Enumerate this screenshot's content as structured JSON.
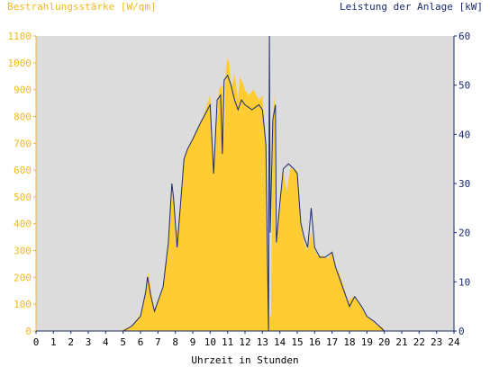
{
  "chart_data": {
    "type": "area",
    "left_axis_label": "Bestrahlungsstärke [W/qm]",
    "right_axis_label": "Leistung der Anlage [kW]",
    "xlabel": "Uhrzeit in Stunden",
    "xlim": [
      0,
      24
    ],
    "x_ticks": [
      0,
      1,
      2,
      3,
      4,
      5,
      6,
      7,
      8,
      9,
      10,
      11,
      12,
      13,
      14,
      15,
      16,
      17,
      18,
      19,
      20,
      21,
      22,
      23,
      24
    ],
    "ylim_left": [
      0,
      1100
    ],
    "y_ticks_left": [
      0,
      100,
      200,
      300,
      400,
      500,
      600,
      700,
      800,
      900,
      1000,
      1100
    ],
    "ylim_right": [
      0,
      60
    ],
    "y_ticks_right": [
      0,
      10,
      20,
      30,
      40,
      50,
      60
    ],
    "grid": false,
    "colors": {
      "irradiance_fill": "#ffcc33",
      "power_line": "#1a2a6c",
      "left_axis_text": "#f2b81c",
      "right_axis_text": "#1a2a6c",
      "plot_bg": "#dcdcdc"
    },
    "series": [
      {
        "axis": "left",
        "style": "filled-area",
        "points": [
          [
            0,
            0
          ],
          [
            4.8,
            0
          ],
          [
            5.0,
            5
          ],
          [
            5.5,
            20
          ],
          [
            6.0,
            60
          ],
          [
            6.3,
            150
          ],
          [
            6.45,
            220
          ],
          [
            6.6,
            150
          ],
          [
            6.8,
            80
          ],
          [
            7.0,
            110
          ],
          [
            7.3,
            160
          ],
          [
            7.6,
            330
          ],
          [
            7.8,
            520
          ],
          [
            7.95,
            480
          ],
          [
            8.0,
            320
          ],
          [
            8.3,
            480
          ],
          [
            8.5,
            640
          ],
          [
            8.7,
            680
          ],
          [
            9.0,
            720
          ],
          [
            9.3,
            760
          ],
          [
            9.6,
            800
          ],
          [
            9.8,
            840
          ],
          [
            10.0,
            880
          ],
          [
            10.2,
            600
          ],
          [
            10.5,
            900
          ],
          [
            10.7,
            920
          ],
          [
            10.8,
            700
          ],
          [
            10.9,
            980
          ],
          [
            11.0,
            1020
          ],
          [
            11.1,
            1000
          ],
          [
            11.2,
            900
          ],
          [
            11.4,
            960
          ],
          [
            11.6,
            860
          ],
          [
            11.7,
            950
          ],
          [
            11.9,
            920
          ],
          [
            12.0,
            900
          ],
          [
            12.2,
            880
          ],
          [
            12.5,
            900
          ],
          [
            12.8,
            860
          ],
          [
            13.0,
            880
          ],
          [
            13.2,
            700
          ],
          [
            13.3,
            200
          ],
          [
            13.4,
            50
          ],
          [
            13.5,
            60
          ],
          [
            13.6,
            800
          ],
          [
            13.7,
            880
          ],
          [
            13.75,
            300
          ],
          [
            13.8,
            350
          ],
          [
            14.0,
            450
          ],
          [
            14.2,
            600
          ],
          [
            14.4,
            520
          ],
          [
            14.6,
            610
          ],
          [
            14.8,
            600
          ],
          [
            15.0,
            600
          ],
          [
            15.2,
            400
          ],
          [
            15.4,
            330
          ],
          [
            15.6,
            300
          ],
          [
            15.8,
            370
          ],
          [
            16.0,
            300
          ],
          [
            16.2,
            280
          ],
          [
            16.5,
            280
          ],
          [
            16.8,
            270
          ],
          [
            17.0,
            300
          ],
          [
            17.2,
            230
          ],
          [
            17.4,
            220
          ],
          [
            17.7,
            160
          ],
          [
            17.9,
            110
          ],
          [
            18.2,
            130
          ],
          [
            18.6,
            100
          ],
          [
            18.9,
            60
          ],
          [
            19.3,
            40
          ],
          [
            19.6,
            20
          ],
          [
            19.9,
            15
          ],
          [
            20.0,
            0
          ],
          [
            24,
            0
          ]
        ]
      },
      {
        "axis": "right",
        "style": "line",
        "points": [
          [
            0,
            0
          ],
          [
            5.0,
            0
          ],
          [
            5.5,
            1
          ],
          [
            6.0,
            3
          ],
          [
            6.3,
            8
          ],
          [
            6.4,
            11
          ],
          [
            6.6,
            7
          ],
          [
            6.8,
            4
          ],
          [
            7.0,
            6
          ],
          [
            7.3,
            9
          ],
          [
            7.6,
            18
          ],
          [
            7.8,
            30
          ],
          [
            7.9,
            27
          ],
          [
            8.1,
            17
          ],
          [
            8.3,
            26
          ],
          [
            8.5,
            35
          ],
          [
            8.7,
            37
          ],
          [
            9.0,
            39
          ],
          [
            9.4,
            42
          ],
          [
            9.7,
            44
          ],
          [
            10.0,
            46
          ],
          [
            10.2,
            32
          ],
          [
            10.4,
            47
          ],
          [
            10.6,
            48
          ],
          [
            10.7,
            36
          ],
          [
            10.8,
            51
          ],
          [
            11.0,
            52
          ],
          [
            11.2,
            50
          ],
          [
            11.4,
            47
          ],
          [
            11.6,
            45
          ],
          [
            11.8,
            47
          ],
          [
            12.0,
            46
          ],
          [
            12.4,
            45
          ],
          [
            12.8,
            46
          ],
          [
            13.0,
            45
          ],
          [
            13.2,
            38
          ],
          [
            13.35,
            0
          ],
          [
            13.4,
            60
          ],
          [
            13.45,
            20
          ],
          [
            13.6,
            43
          ],
          [
            13.75,
            46
          ],
          [
            13.8,
            18
          ],
          [
            14.0,
            26
          ],
          [
            14.2,
            33
          ],
          [
            14.5,
            34
          ],
          [
            14.8,
            33
          ],
          [
            15.0,
            32
          ],
          [
            15.2,
            22
          ],
          [
            15.4,
            19
          ],
          [
            15.6,
            17
          ],
          [
            15.8,
            25
          ],
          [
            16.0,
            17
          ],
          [
            16.3,
            15
          ],
          [
            16.6,
            15
          ],
          [
            17.0,
            16
          ],
          [
            17.2,
            13
          ],
          [
            17.5,
            10
          ],
          [
            17.8,
            7
          ],
          [
            18.0,
            5
          ],
          [
            18.3,
            7
          ],
          [
            18.7,
            5
          ],
          [
            19.0,
            3
          ],
          [
            19.4,
            2
          ],
          [
            19.7,
            1
          ],
          [
            20.0,
            0
          ],
          [
            24,
            0
          ]
        ]
      }
    ]
  }
}
